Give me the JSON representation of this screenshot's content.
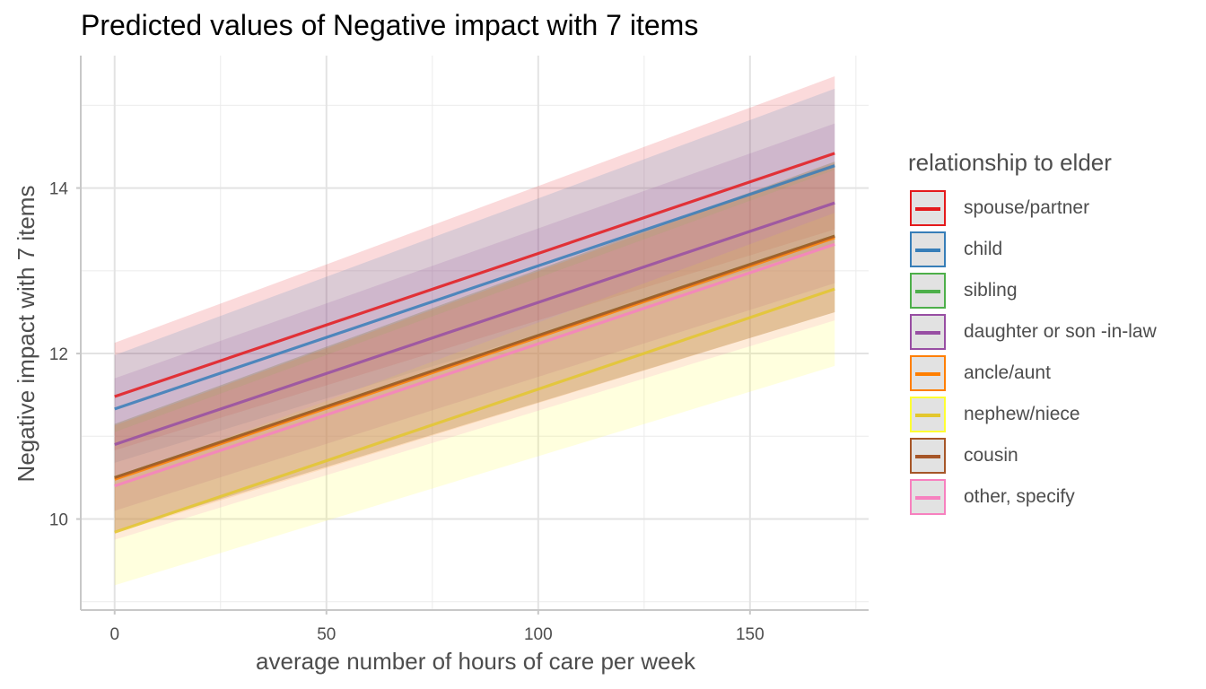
{
  "chart_data": {
    "type": "line",
    "title": "Predicted values of Negative impact with 7 items",
    "xlabel": "average number of hours of care per week",
    "ylabel": "Negative impact with 7 items",
    "xlim": [
      -8,
      178
    ],
    "ylim": [
      8.9,
      15.6
    ],
    "x_ticks": [
      0,
      50,
      100,
      150
    ],
    "y_ticks": [
      10,
      12,
      14
    ],
    "x_minor": [
      25,
      75,
      125,
      175
    ],
    "y_minor": [
      9,
      11,
      13,
      15
    ],
    "legend_title": "relationship to elder",
    "legend_position": "right",
    "series": [
      {
        "name": "spouse/partner",
        "color": "#E41A1C",
        "x": [
          0,
          170
        ],
        "y": [
          11.48,
          14.42
        ],
        "lower": [
          10.83,
          13.5
        ],
        "upper": [
          12.13,
          15.35
        ]
      },
      {
        "name": "child",
        "color": "#377EB8",
        "x": [
          0,
          170
        ],
        "y": [
          11.33,
          14.27
        ],
        "lower": [
          10.68,
          13.32
        ],
        "upper": [
          11.98,
          15.2
        ]
      },
      {
        "name": "sibling",
        "color": "#4DAF4A",
        "x": [
          0,
          170
        ],
        "y": [
          10.5,
          13.42
        ],
        "lower": [
          9.85,
          12.5
        ],
        "upper": [
          11.15,
          14.32
        ]
      },
      {
        "name": "daughter or son -in-law",
        "color": "#984EA3",
        "x": [
          0,
          170
        ],
        "y": [
          10.9,
          13.82
        ],
        "lower": [
          10.1,
          12.85
        ],
        "upper": [
          11.7,
          14.78
        ]
      },
      {
        "name": "ancle/aunt",
        "color": "#FF7F00",
        "x": [
          0,
          170
        ],
        "y": [
          10.48,
          13.4
        ],
        "lower": [
          9.83,
          12.5
        ],
        "upper": [
          11.13,
          14.3
        ]
      },
      {
        "name": "nephew/niece",
        "color": "#FFFF33",
        "line_color": "#E3C72E",
        "x": [
          0,
          170
        ],
        "y": [
          9.84,
          12.78
        ],
        "lower": [
          9.2,
          11.85
        ],
        "upper": [
          10.48,
          13.7
        ]
      },
      {
        "name": "cousin",
        "color": "#A65628",
        "x": [
          0,
          170
        ],
        "y": [
          10.5,
          13.42
        ],
        "lower": [
          9.85,
          12.5
        ],
        "upper": [
          11.15,
          14.32
        ]
      },
      {
        "name": "other, specify",
        "color": "#F781BF",
        "x": [
          0,
          170
        ],
        "y": [
          10.4,
          13.32
        ],
        "lower": [
          9.75,
          12.4
        ],
        "upper": [
          11.05,
          14.22
        ]
      }
    ]
  }
}
